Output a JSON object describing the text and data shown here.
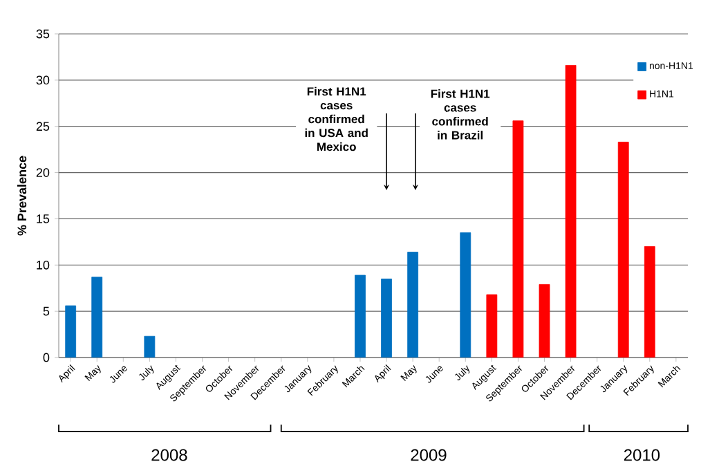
{
  "chart_data": {
    "type": "bar",
    "ylabel": "% Prevalence",
    "categories": [
      "April",
      "May",
      "June",
      "July",
      "August",
      "September",
      "October",
      "November",
      "December",
      "January",
      "February",
      "March",
      "April",
      "May",
      "June",
      "July",
      "August",
      "September",
      "October",
      "November",
      "December",
      "January",
      "February",
      "March"
    ],
    "series": [
      {
        "name": "non-H1N1",
        "color": "#0070c0",
        "values": [
          5.6,
          8.7,
          null,
          2.3,
          null,
          null,
          null,
          null,
          null,
          null,
          null,
          8.9,
          8.5,
          11.4,
          null,
          13.5,
          null,
          null,
          null,
          null,
          null,
          null,
          null,
          null
        ]
      },
      {
        "name": "H1N1",
        "color": "#ff0000",
        "values": [
          null,
          null,
          null,
          null,
          null,
          null,
          null,
          null,
          null,
          null,
          null,
          null,
          null,
          null,
          null,
          null,
          6.8,
          25.6,
          7.9,
          31.6,
          null,
          23.3,
          12.0,
          null
        ]
      }
    ],
    "ylim": [
      0,
      35
    ],
    "yticks": [
      0,
      5,
      10,
      15,
      20,
      25,
      30,
      35
    ],
    "grid": "y",
    "legend": "top right",
    "annotations": [
      "First H1N1 cases confirmed in USA and Mexico",
      "First H1N1 cases confirmed in Brazil",
      "2008",
      "2009",
      "2010"
    ]
  }
}
